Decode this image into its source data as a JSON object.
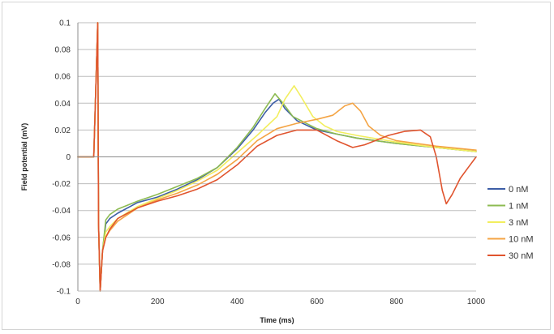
{
  "chart_data": {
    "type": "line",
    "xlabel": "Time (ms)",
    "ylabel": "Field potential (mV)",
    "xlim": [
      0,
      1000
    ],
    "ylim": [
      -0.1,
      0.1
    ],
    "xticks": [
      0,
      200,
      400,
      600,
      800,
      1000
    ],
    "yticks": [
      -0.1,
      -0.08,
      -0.06,
      -0.04,
      -0.02,
      0,
      0.02,
      0.04,
      0.06,
      0.08,
      0.1
    ],
    "ytick_labels": [
      "-0.1",
      "-0.08",
      "-0.06",
      "-0.04",
      "-0.02",
      "0",
      "0.02",
      "0.04",
      "0.06",
      "0.08",
      "0.1"
    ],
    "grid": "horizontal",
    "legend_position": "right",
    "series": [
      {
        "name": "0 nM",
        "color": "#3d5ea6",
        "x": [
          0,
          40,
          50,
          52,
          56,
          62,
          70,
          80,
          100,
          150,
          200,
          250,
          300,
          350,
          400,
          440,
          470,
          490,
          505,
          520,
          550,
          600,
          650,
          700,
          800,
          900,
          1000
        ],
        "y": [
          0,
          0,
          0.1,
          -0.05,
          -0.1,
          -0.07,
          -0.05,
          -0.046,
          -0.042,
          -0.034,
          -0.03,
          -0.024,
          -0.017,
          -0.008,
          0.006,
          0.02,
          0.033,
          0.04,
          0.043,
          0.036,
          0.027,
          0.02,
          0.017,
          0.014,
          0.01,
          0.007,
          0.004
        ]
      },
      {
        "name": "1 nM",
        "color": "#8dbb52",
        "x": [
          0,
          40,
          50,
          52,
          56,
          62,
          70,
          80,
          100,
          150,
          200,
          250,
          300,
          350,
          400,
          440,
          470,
          495,
          515,
          540,
          600,
          650,
          700,
          800,
          900,
          1000
        ],
        "y": [
          0,
          0,
          0.1,
          -0.05,
          -0.1,
          -0.07,
          -0.047,
          -0.043,
          -0.039,
          -0.033,
          -0.028,
          -0.022,
          -0.016,
          -0.008,
          0.007,
          0.022,
          0.036,
          0.047,
          0.04,
          0.03,
          0.021,
          0.017,
          0.014,
          0.01,
          0.007,
          0.004
        ]
      },
      {
        "name": "3 nM",
        "color": "#f2ee5e",
        "x": [
          0,
          40,
          50,
          52,
          56,
          62,
          70,
          80,
          100,
          150,
          200,
          250,
          300,
          350,
          400,
          450,
          500,
          520,
          543,
          560,
          590,
          620,
          650,
          700,
          800,
          900,
          1000
        ],
        "y": [
          0,
          0,
          0.1,
          -0.05,
          -0.1,
          -0.07,
          -0.056,
          -0.052,
          -0.046,
          -0.037,
          -0.031,
          -0.025,
          -0.018,
          -0.01,
          0.003,
          0.016,
          0.03,
          0.043,
          0.053,
          0.045,
          0.03,
          0.023,
          0.019,
          0.016,
          0.011,
          0.007,
          0.004
        ]
      },
      {
        "name": "10 nM",
        "color": "#f4a444",
        "x": [
          0,
          40,
          50,
          52,
          56,
          62,
          70,
          80,
          100,
          150,
          200,
          250,
          300,
          350,
          400,
          450,
          500,
          550,
          600,
          640,
          670,
          690,
          710,
          730,
          760,
          800,
          900,
          1000
        ],
        "y": [
          0,
          0,
          0.1,
          -0.05,
          -0.1,
          -0.07,
          -0.06,
          -0.055,
          -0.048,
          -0.038,
          -0.032,
          -0.027,
          -0.021,
          -0.013,
          -0.002,
          0.012,
          0.021,
          0.025,
          0.028,
          0.031,
          0.038,
          0.04,
          0.034,
          0.023,
          0.016,
          0.012,
          0.008,
          0.005
        ]
      },
      {
        "name": "30 nM",
        "color": "#e0542e",
        "x": [
          0,
          40,
          50,
          52,
          56,
          62,
          70,
          80,
          100,
          150,
          200,
          250,
          300,
          350,
          400,
          450,
          500,
          550,
          600,
          650,
          690,
          720,
          780,
          820,
          860,
          885,
          900,
          915,
          925,
          940,
          960,
          980,
          1000
        ],
        "y": [
          0,
          0,
          0.1,
          -0.05,
          -0.1,
          -0.07,
          -0.06,
          -0.054,
          -0.046,
          -0.038,
          -0.033,
          -0.029,
          -0.024,
          -0.017,
          -0.006,
          0.008,
          0.016,
          0.02,
          0.02,
          0.012,
          0.007,
          0.009,
          0.016,
          0.019,
          0.02,
          0.015,
          0.0,
          -0.025,
          -0.035,
          -0.028,
          -0.016,
          -0.008,
          0.0
        ]
      }
    ]
  }
}
